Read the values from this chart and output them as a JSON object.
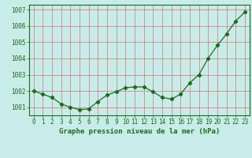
{
  "x": [
    0,
    1,
    2,
    3,
    4,
    5,
    6,
    7,
    8,
    9,
    10,
    11,
    12,
    13,
    14,
    15,
    16,
    17,
    18,
    19,
    20,
    21,
    22,
    23
  ],
  "y": [
    1002.0,
    1001.8,
    1001.6,
    1001.2,
    1001.0,
    1000.85,
    1000.9,
    1001.35,
    1001.75,
    1001.95,
    1002.2,
    1002.25,
    1002.25,
    1001.95,
    1001.6,
    1001.5,
    1001.8,
    1002.5,
    1003.0,
    1004.0,
    1004.8,
    1005.5,
    1006.3,
    1006.85
  ],
  "line_color": "#1a6b1a",
  "marker": "D",
  "marker_size": 2.2,
  "bg_color": "#c8ece8",
  "grid_color": "#cc7777",
  "ylabel_ticks": [
    1001,
    1002,
    1003,
    1004,
    1005,
    1006,
    1007
  ],
  "xlabel": "Graphe pression niveau de la mer (hPa)",
  "xlabel_color": "#1a6b1a",
  "ylim": [
    1000.5,
    1007.3
  ],
  "xlim": [
    -0.5,
    23.5
  ],
  "tick_color": "#1a6b1a",
  "tick_fontsize": 5.5,
  "xlabel_fontsize": 6.5,
  "spine_color": "#1a6b1a"
}
